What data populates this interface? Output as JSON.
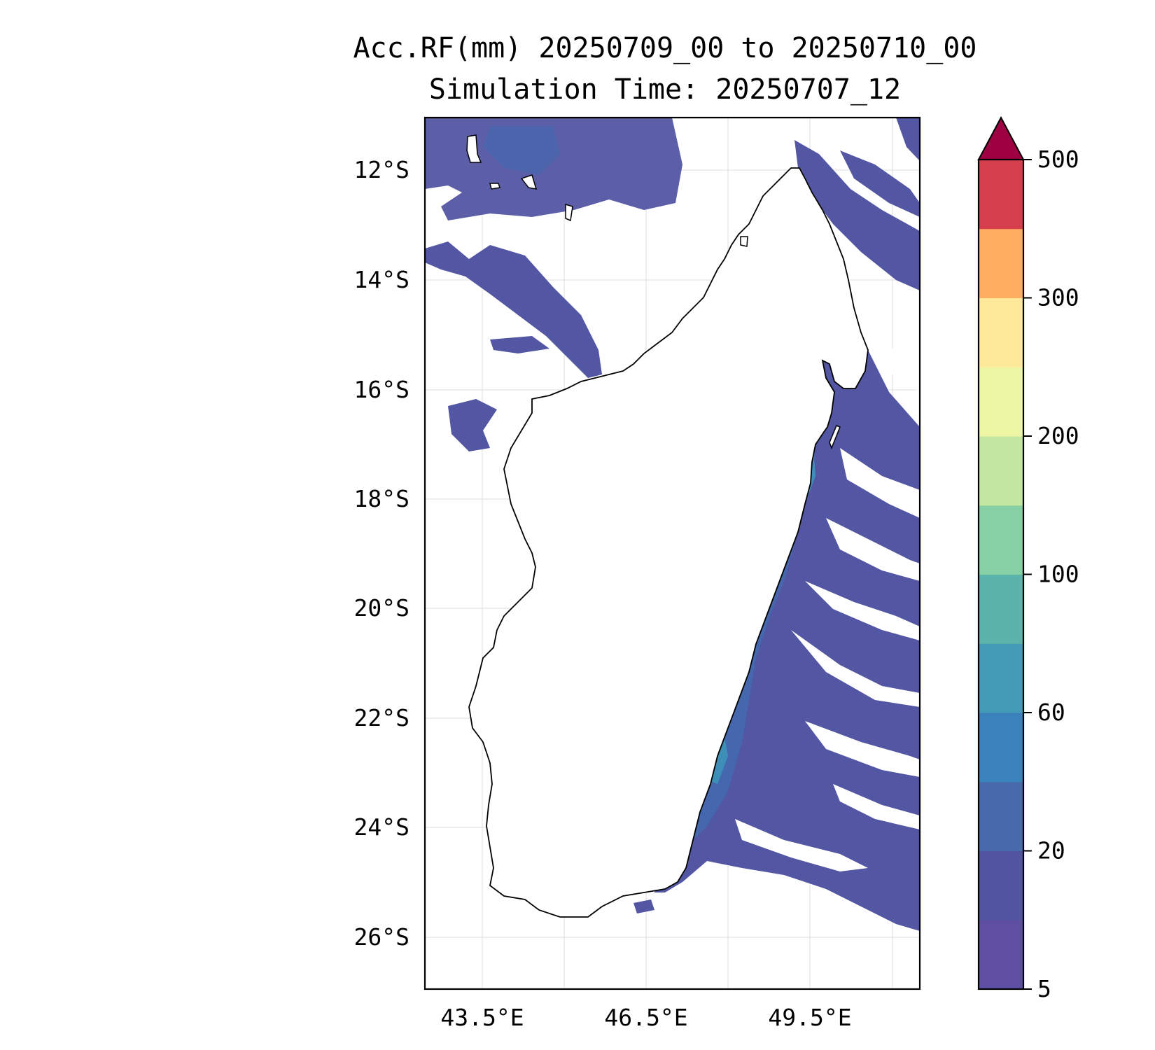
{
  "title": {
    "line1": "Acc.RF(mm) 20250709_00 to 20250710_00",
    "line2": "Simulation Time: 20250707_12"
  },
  "map": {
    "lat_ticks": [
      "12°S",
      "14°S",
      "16°S",
      "18°S",
      "20°S",
      "22°S",
      "24°S",
      "26°S"
    ],
    "lon_ticks": [
      "43.5°E",
      "46.5°E",
      "49.5°E"
    ],
    "lon_range": [
      42.5,
      51.5
    ],
    "lat_range": [
      -26.9,
      -11.0
    ],
    "land_fill": "#ffffff",
    "coastline_color": "#000000"
  },
  "colorbar": {
    "extend": "max",
    "tick_labels": [
      "5",
      "20",
      "60",
      "100",
      "200",
      "300",
      "500"
    ],
    "colors": [
      "#5e4fa2",
      "#5253a1",
      "#486aad",
      "#3a82bb",
      "#439bb5",
      "#5bb4a9",
      "#87cfa4",
      "#c3e6a1",
      "#edf6a5",
      "#fee99a",
      "#fdad60",
      "#d6404e"
    ],
    "extend_color": "#9e0142"
  },
  "rain_colors": {
    "light": "#5356a3",
    "medium": "#4467ad",
    "heavy": "#3d8fb8",
    "peak": "#5fb3a6"
  }
}
